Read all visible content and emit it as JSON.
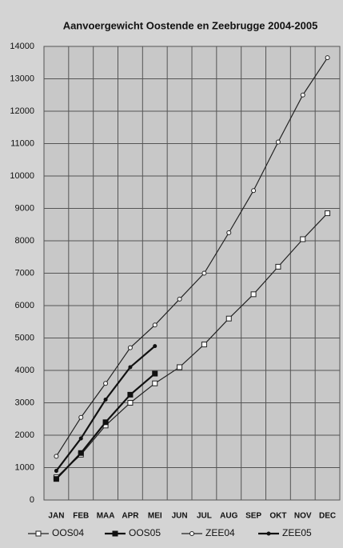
{
  "chart_data": {
    "type": "line",
    "title": "Aanvoergewicht Oostende en Zeebrugge 2004-2005",
    "categories": [
      "JAN",
      "FEB",
      "MAA",
      "APR",
      "MEI",
      "JUN",
      "JUL",
      "AUG",
      "SEP",
      "OKT",
      "NOV",
      "DEC"
    ],
    "series": [
      {
        "name": "OOS04",
        "color": "#222222",
        "marker": "square-open",
        "values": [
          700,
          1400,
          2300,
          3000,
          3600,
          4100,
          4800,
          5600,
          6350,
          7200,
          8050,
          8850
        ]
      },
      {
        "name": "OOS05",
        "color": "#111111",
        "marker": "square-filled",
        "values": [
          650,
          1450,
          2400,
          3250,
          3900,
          null,
          null,
          null,
          null,
          null,
          null,
          null
        ]
      },
      {
        "name": "ZEE04",
        "color": "#222222",
        "marker": "circle-open",
        "values": [
          1350,
          2550,
          3600,
          4700,
          5400,
          6200,
          7000,
          8250,
          9550,
          11050,
          12500,
          13650
        ]
      },
      {
        "name": "ZEE05",
        "color": "#111111",
        "marker": "circle-filled",
        "values": [
          900,
          1900,
          3100,
          4100,
          4750,
          null,
          null,
          null,
          null,
          null,
          null,
          null
        ]
      }
    ],
    "ylim": [
      0,
      14000
    ],
    "yticks": [
      0,
      1000,
      2000,
      3000,
      4000,
      5000,
      6000,
      7000,
      8000,
      9000,
      10000,
      11000,
      12000,
      13000,
      14000
    ],
    "grid": true,
    "legend": "bottom"
  }
}
